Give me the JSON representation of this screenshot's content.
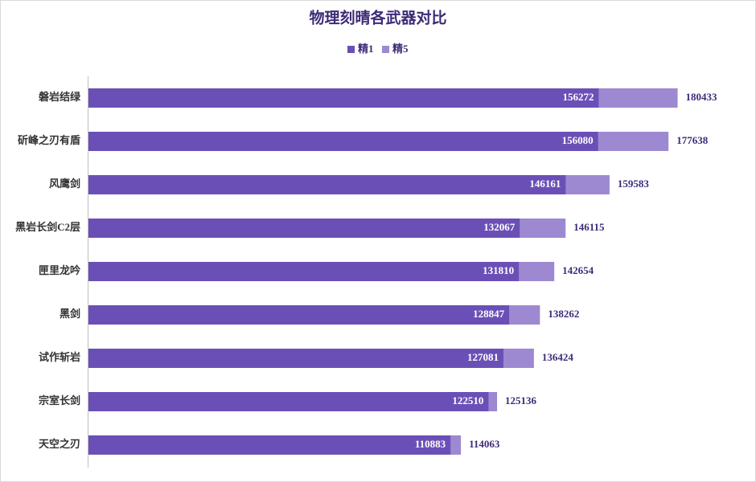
{
  "chart_data": {
    "type": "bar",
    "orientation": "horizontal",
    "overlap": true,
    "title": "物理刻晴各武器对比",
    "categories": [
      "磐岩结绿",
      "斫峰之刃有盾",
      "风鹰剑",
      "黑岩长剑C2层",
      "匣里龙吟",
      "黑剑",
      "试作斩岩",
      "宗室长剑",
      "天空之刃"
    ],
    "series": [
      {
        "name": "精1",
        "color": "#6a50b6",
        "values": [
          156272,
          156080,
          146161,
          132067,
          131810,
          128847,
          127081,
          122510,
          110883
        ]
      },
      {
        "name": "精5",
        "color": "#9d89d1",
        "values": [
          180433,
          177638,
          159583,
          146115,
          142654,
          138262,
          136424,
          125136,
          114063
        ]
      }
    ],
    "xlim": [
      0,
      200000
    ],
    "legend": "top"
  }
}
